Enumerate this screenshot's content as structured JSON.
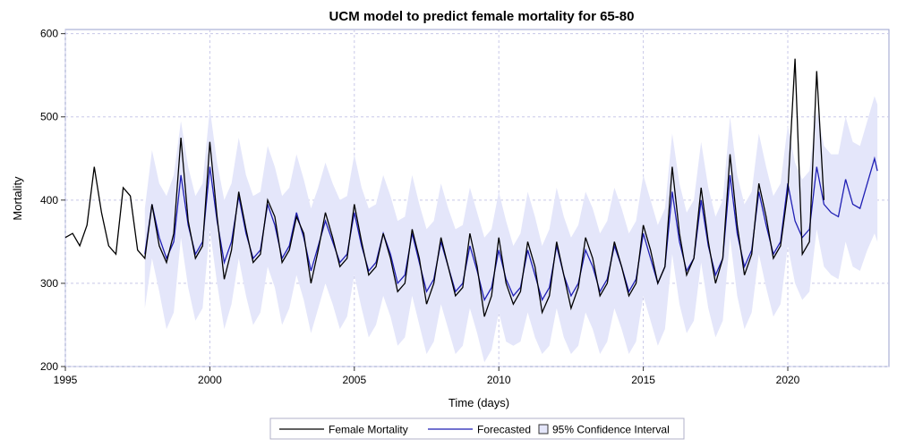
{
  "colors": {
    "actual": "#000000",
    "forecast": "#1f1fb4",
    "band": "#e4e6fa",
    "grid": "#c8c8e8",
    "frame": "#9aa0cc"
  },
  "chart_data": {
    "type": "line",
    "title": "UCM model to predict female mortality for 65-80",
    "xlabel": "Time (days)",
    "ylabel": "Mortality",
    "xlim": [
      1995,
      2023.5
    ],
    "ylim": [
      200,
      605
    ],
    "x_ticks": [
      "1995",
      "2000",
      "2005",
      "2010",
      "2015",
      "2020"
    ],
    "x_tick_values": [
      1995,
      2000,
      2005,
      2010,
      2015,
      2020
    ],
    "y_ticks": [
      "200",
      "300",
      "400",
      "500",
      "600"
    ],
    "y_tick_values": [
      200,
      300,
      400,
      500,
      600
    ],
    "grid": true,
    "legend_position": "bottom",
    "legend": [
      "Female Mortality",
      "Forecasted",
      "95% Confidence Interval"
    ],
    "series": [
      {
        "name": "Female Mortality",
        "x": [
          1995.0,
          1995.25,
          1995.5,
          1995.75,
          1996.0,
          1996.25,
          1996.5,
          1996.75,
          1997.0,
          1997.25,
          1997.5,
          1997.75,
          1998.0,
          1998.25,
          1998.5,
          1998.75,
          1999.0,
          1999.25,
          1999.5,
          1999.75,
          2000.0,
          2000.25,
          2000.5,
          2000.75,
          2001.0,
          2001.25,
          2001.5,
          2001.75,
          2002.0,
          2002.25,
          2002.5,
          2002.75,
          2003.0,
          2003.25,
          2003.5,
          2003.75,
          2004.0,
          2004.25,
          2004.5,
          2004.75,
          2005.0,
          2005.25,
          2005.5,
          2005.75,
          2006.0,
          2006.25,
          2006.5,
          2006.75,
          2007.0,
          2007.25,
          2007.5,
          2007.75,
          2008.0,
          2008.25,
          2008.5,
          2008.75,
          2009.0,
          2009.25,
          2009.5,
          2009.75,
          2010.0,
          2010.25,
          2010.5,
          2010.75,
          2011.0,
          2011.25,
          2011.5,
          2011.75,
          2012.0,
          2012.25,
          2012.5,
          2012.75,
          2013.0,
          2013.25,
          2013.5,
          2013.75,
          2014.0,
          2014.25,
          2014.5,
          2014.75,
          2015.0,
          2015.25,
          2015.5,
          2015.75,
          2016.0,
          2016.25,
          2016.5,
          2016.75,
          2017.0,
          2017.25,
          2017.5,
          2017.75,
          2018.0,
          2018.25,
          2018.5,
          2018.75,
          2019.0,
          2019.25,
          2019.5,
          2019.75,
          2020.0,
          2020.25,
          2020.5,
          2020.75,
          2021.0,
          2021.25
        ],
        "y": [
          355,
          360,
          345,
          370,
          440,
          385,
          345,
          335,
          415,
          405,
          340,
          330,
          395,
          345,
          325,
          360,
          475,
          375,
          330,
          345,
          470,
          380,
          305,
          340,
          410,
          365,
          325,
          335,
          400,
          380,
          325,
          340,
          380,
          360,
          300,
          340,
          385,
          355,
          320,
          330,
          395,
          350,
          310,
          320,
          360,
          330,
          290,
          300,
          365,
          330,
          275,
          300,
          355,
          320,
          285,
          295,
          360,
          320,
          260,
          285,
          355,
          300,
          275,
          290,
          350,
          320,
          265,
          285,
          350,
          310,
          270,
          295,
          355,
          330,
          285,
          300,
          350,
          320,
          285,
          300,
          370,
          340,
          300,
          320,
          440,
          360,
          310,
          330,
          415,
          350,
          300,
          330,
          455,
          370,
          310,
          335,
          420,
          380,
          330,
          345,
          410,
          570,
          335,
          350,
          555,
          400
        ]
      },
      {
        "name": "Forecasted",
        "x": [
          1997.75,
          1998.0,
          1998.25,
          1998.5,
          1998.75,
          1999.0,
          1999.25,
          1999.5,
          1999.75,
          2000.0,
          2000.25,
          2000.5,
          2000.75,
          2001.0,
          2001.25,
          2001.5,
          2001.75,
          2002.0,
          2002.25,
          2002.5,
          2002.75,
          2003.0,
          2003.25,
          2003.5,
          2003.75,
          2004.0,
          2004.25,
          2004.5,
          2004.75,
          2005.0,
          2005.25,
          2005.5,
          2005.75,
          2006.0,
          2006.25,
          2006.5,
          2006.75,
          2007.0,
          2007.25,
          2007.5,
          2007.75,
          2008.0,
          2008.25,
          2008.5,
          2008.75,
          2009.0,
          2009.25,
          2009.5,
          2009.75,
          2010.0,
          2010.25,
          2010.5,
          2010.75,
          2011.0,
          2011.25,
          2011.5,
          2011.75,
          2012.0,
          2012.25,
          2012.5,
          2012.75,
          2013.0,
          2013.25,
          2013.5,
          2013.75,
          2014.0,
          2014.25,
          2014.5,
          2014.75,
          2015.0,
          2015.25,
          2015.5,
          2015.75,
          2016.0,
          2016.25,
          2016.5,
          2016.75,
          2017.0,
          2017.25,
          2017.5,
          2017.75,
          2018.0,
          2018.25,
          2018.5,
          2018.75,
          2019.0,
          2019.25,
          2019.5,
          2019.75,
          2020.0,
          2020.25,
          2020.5,
          2020.75,
          2021.0,
          2021.25,
          2021.5,
          2021.75,
          2022.0,
          2022.25,
          2022.5,
          2022.75,
          2023.0,
          2023.1
        ],
        "y": [
          335,
          395,
          355,
          330,
          350,
          430,
          370,
          335,
          350,
          440,
          375,
          325,
          350,
          405,
          360,
          330,
          340,
          395,
          370,
          330,
          345,
          385,
          355,
          315,
          345,
          375,
          350,
          325,
          335,
          385,
          345,
          315,
          325,
          360,
          335,
          300,
          310,
          360,
          325,
          290,
          305,
          350,
          320,
          290,
          300,
          345,
          315,
          280,
          295,
          340,
          305,
          285,
          295,
          340,
          310,
          280,
          295,
          345,
          310,
          285,
          300,
          340,
          320,
          290,
          305,
          345,
          320,
          290,
          305,
          360,
          330,
          300,
          320,
          410,
          350,
          315,
          330,
          400,
          345,
          310,
          330,
          430,
          360,
          320,
          340,
          410,
          370,
          335,
          350,
          420,
          375,
          355,
          365,
          440,
          395,
          385,
          380,
          425,
          395,
          390,
          420,
          450,
          435
        ]
      },
      {
        "name": "95% Confidence Interval",
        "x": [
          1997.75,
          1998.0,
          1998.25,
          1998.5,
          1998.75,
          1999.0,
          1999.25,
          1999.5,
          1999.75,
          2000.0,
          2000.25,
          2000.5,
          2000.75,
          2001.0,
          2001.25,
          2001.5,
          2001.75,
          2002.0,
          2002.25,
          2002.5,
          2002.75,
          2003.0,
          2003.25,
          2003.5,
          2003.75,
          2004.0,
          2004.25,
          2004.5,
          2004.75,
          2005.0,
          2005.25,
          2005.5,
          2005.75,
          2006.0,
          2006.25,
          2006.5,
          2006.75,
          2007.0,
          2007.25,
          2007.5,
          2007.75,
          2008.0,
          2008.25,
          2008.5,
          2008.75,
          2009.0,
          2009.25,
          2009.5,
          2009.75,
          2010.0,
          2010.25,
          2010.5,
          2010.75,
          2011.0,
          2011.25,
          2011.5,
          2011.75,
          2012.0,
          2012.25,
          2012.5,
          2012.75,
          2013.0,
          2013.25,
          2013.5,
          2013.75,
          2014.0,
          2014.25,
          2014.5,
          2014.75,
          2015.0,
          2015.25,
          2015.5,
          2015.75,
          2016.0,
          2016.25,
          2016.5,
          2016.75,
          2017.0,
          2017.25,
          2017.5,
          2017.75,
          2018.0,
          2018.25,
          2018.5,
          2018.75,
          2019.0,
          2019.25,
          2019.5,
          2019.75,
          2020.0,
          2020.25,
          2020.5,
          2020.75,
          2021.0,
          2021.25,
          2021.5,
          2021.75,
          2022.0,
          2022.25,
          2022.5,
          2022.75,
          2023.0,
          2023.1
        ],
        "lower": [
          270,
          330,
          290,
          245,
          265,
          355,
          295,
          255,
          270,
          365,
          300,
          245,
          275,
          330,
          285,
          250,
          265,
          320,
          295,
          250,
          270,
          310,
          280,
          240,
          270,
          300,
          275,
          245,
          260,
          310,
          270,
          235,
          250,
          285,
          260,
          225,
          235,
          285,
          250,
          215,
          230,
          275,
          245,
          215,
          225,
          270,
          240,
          205,
          220,
          265,
          230,
          225,
          230,
          265,
          235,
          215,
          225,
          270,
          235,
          215,
          225,
          265,
          245,
          215,
          230,
          270,
          245,
          215,
          230,
          285,
          255,
          225,
          245,
          335,
          275,
          240,
          255,
          325,
          270,
          235,
          255,
          355,
          285,
          245,
          265,
          335,
          295,
          260,
          275,
          345,
          300,
          280,
          290,
          365,
          320,
          310,
          305,
          350,
          320,
          315,
          340,
          360,
          350
        ],
        "upper": [
          390,
          460,
          420,
          405,
          430,
          495,
          440,
          405,
          420,
          510,
          445,
          400,
          420,
          475,
          430,
          405,
          410,
          465,
          440,
          405,
          415,
          455,
          425,
          390,
          415,
          445,
          420,
          400,
          405,
          455,
          415,
          390,
          395,
          430,
          405,
          375,
          380,
          430,
          395,
          365,
          375,
          420,
          390,
          365,
          370,
          415,
          385,
          355,
          365,
          410,
          375,
          345,
          360,
          410,
          380,
          345,
          365,
          415,
          380,
          355,
          370,
          410,
          390,
          360,
          375,
          415,
          390,
          360,
          375,
          430,
          400,
          370,
          390,
          480,
          420,
          385,
          400,
          470,
          415,
          380,
          400,
          500,
          430,
          395,
          410,
          480,
          440,
          405,
          420,
          490,
          445,
          425,
          435,
          510,
          465,
          455,
          455,
          500,
          470,
          465,
          495,
          525,
          515
        ]
      }
    ]
  }
}
